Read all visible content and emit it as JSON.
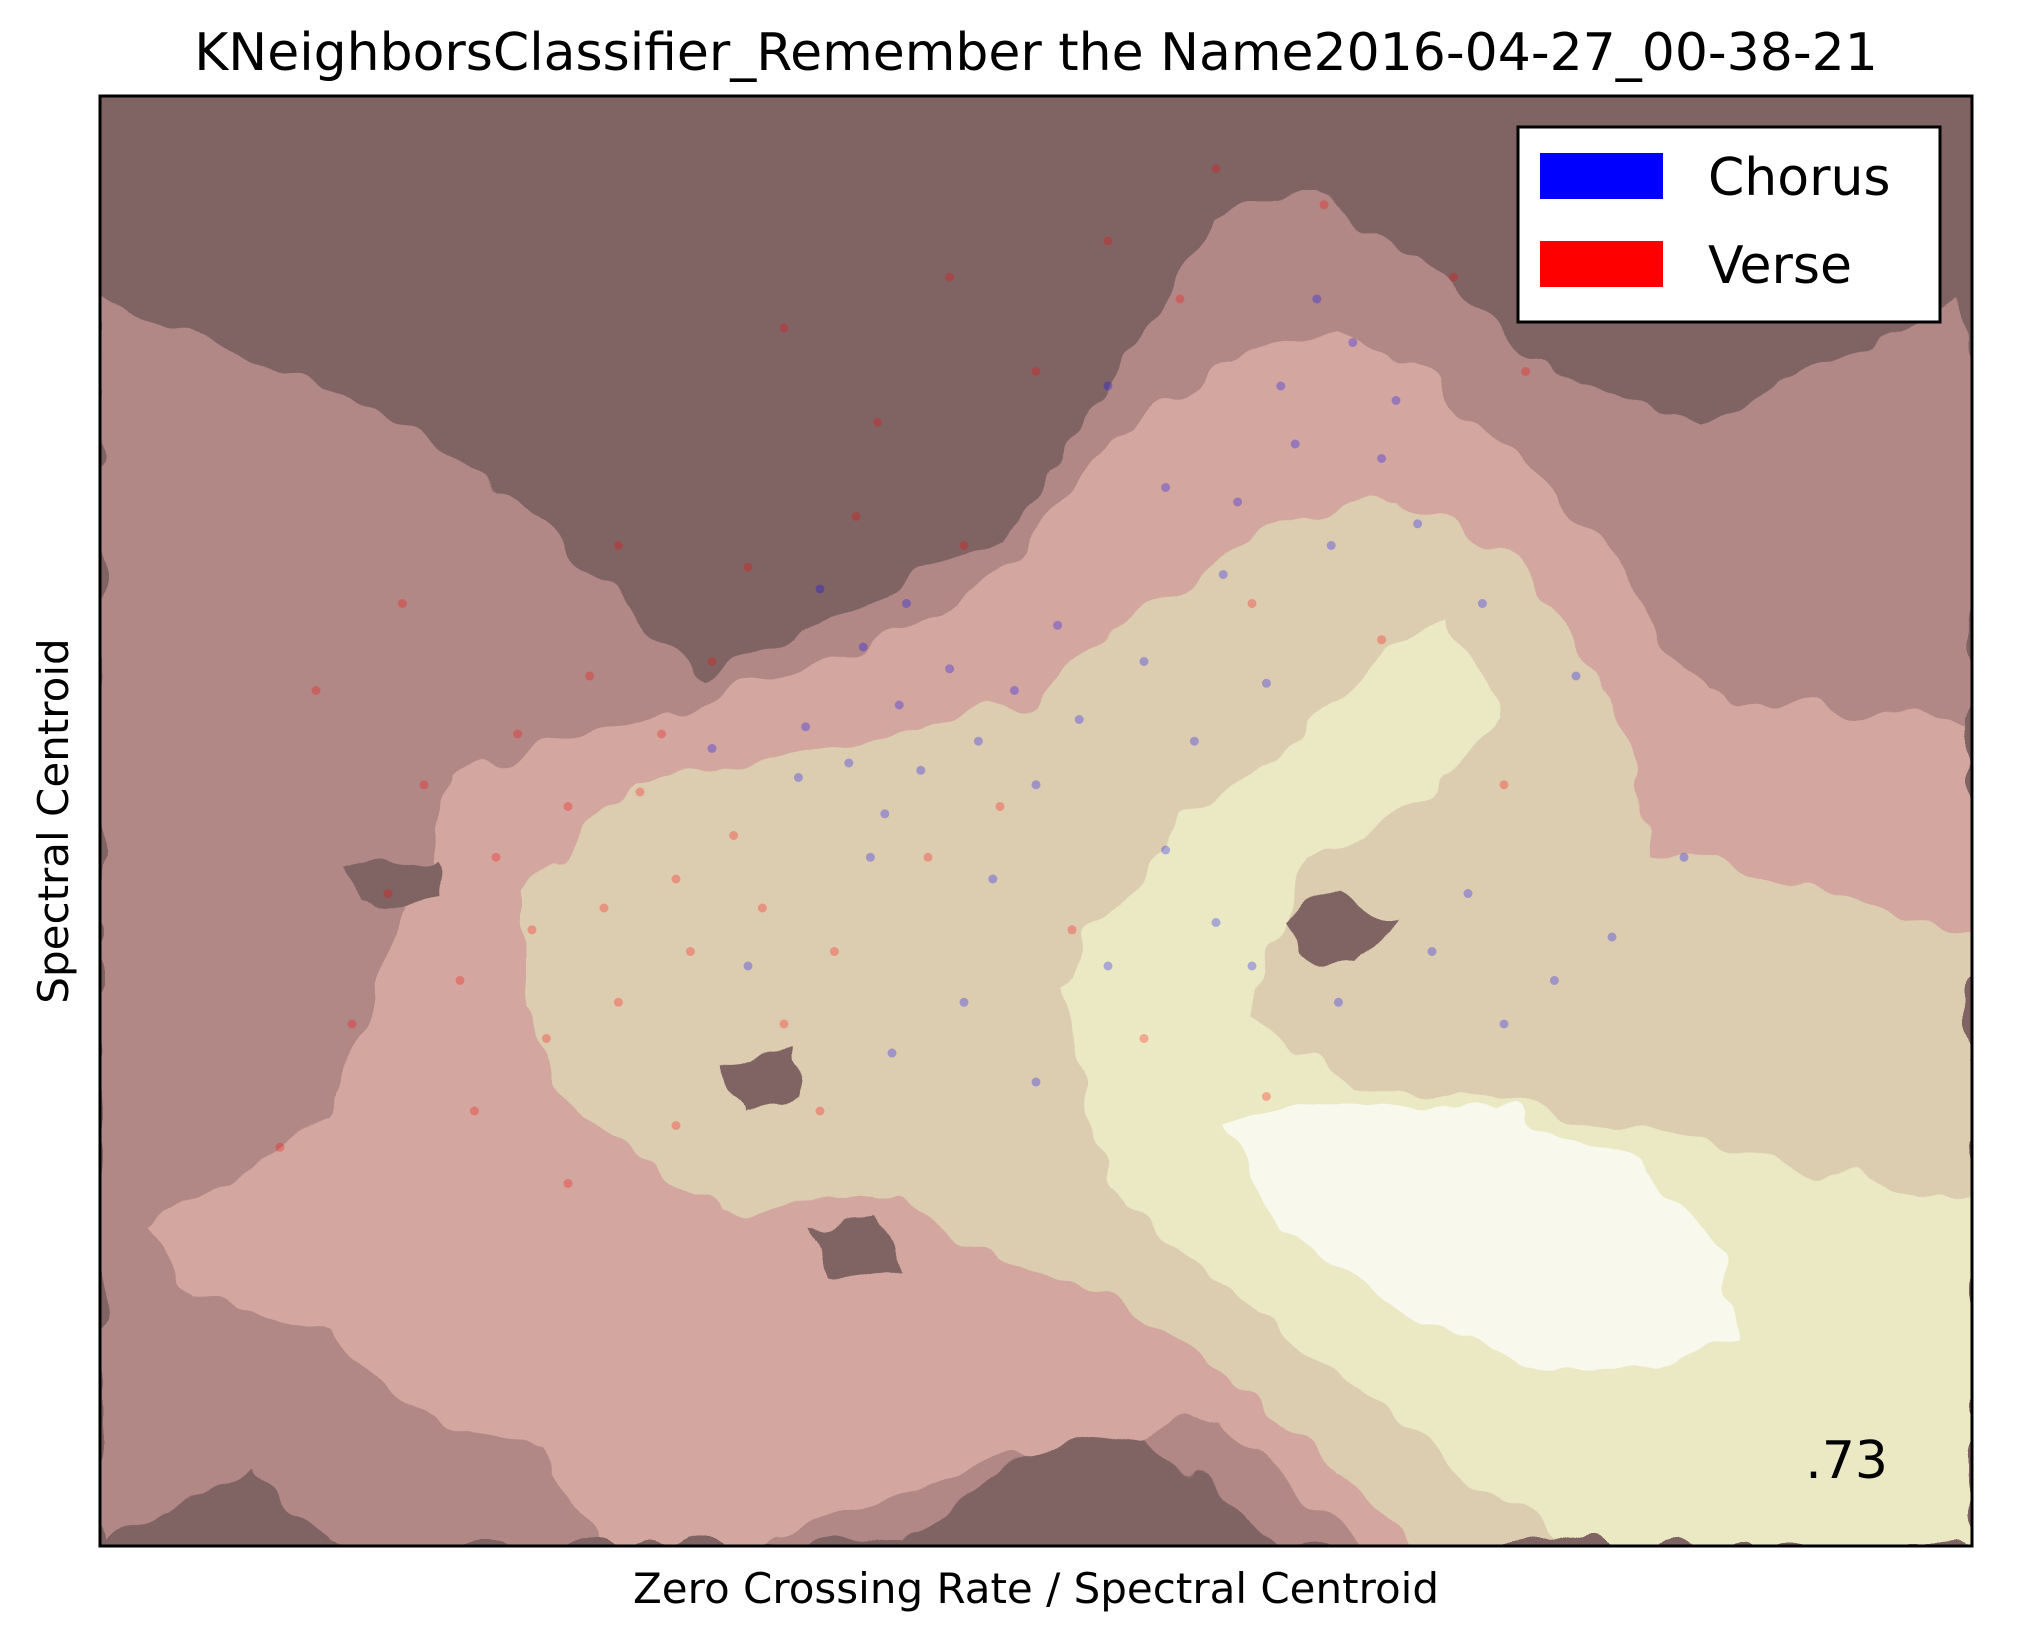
{
  "chart_data": {
    "type": "scatter",
    "title": "KNeighborsClassifier_Remember the Name2016-04-27_00-38-21",
    "xlabel": "Zero Crossing Rate / Spectral Centroid",
    "ylabel": "Spectral Centroid",
    "ticks_shown": false,
    "score_label": ".73",
    "legend": {
      "position": "upper-right",
      "entries": [
        {
          "label": "Chorus",
          "color": "#0000ff"
        },
        {
          "label": "Verse",
          "color": "#ff0000"
        }
      ]
    },
    "background": {
      "kind": "decision-surface-contour",
      "colormap": "pink",
      "levels": [
        "#806464",
        "#b28887",
        "#d3a79f",
        "#ddcdb0",
        "#eae9c4",
        "#f8f8ed"
      ]
    },
    "series": [
      {
        "name": "Chorus",
        "color": "#0000ff",
        "points": [
          [
            -0.03,
            0.06
          ],
          [
            -0.02,
            0.13
          ],
          [
            0.04,
            0.08
          ],
          [
            0.09,
            0.01
          ],
          [
            0.11,
            0.16
          ],
          [
            0.07,
            -0.05
          ],
          [
            0.14,
            0.07
          ],
          [
            0.18,
            0.21
          ],
          [
            0.22,
            0.11
          ],
          [
            0.06,
            0.24
          ],
          [
            0.27,
            0.18
          ],
          [
            0.3,
            0.05
          ],
          [
            0.24,
            -0.08
          ],
          [
            0.33,
            0.27
          ],
          [
            0.36,
            0.14
          ],
          [
            0.12,
            0.3
          ],
          [
            0.45,
            0.22
          ],
          [
            0.52,
            0.11
          ],
          [
            0.48,
            -0.04
          ],
          [
            0.56,
            0.34
          ],
          [
            0.62,
            0.19
          ],
          [
            0.58,
            0.44
          ],
          [
            0.66,
            0.52
          ],
          [
            0.71,
            0.38
          ],
          [
            0.64,
            0.6
          ],
          [
            0.74,
            0.66
          ],
          [
            0.78,
            0.5
          ],
          [
            0.69,
            0.72
          ],
          [
            0.83,
            0.41
          ],
          [
            0.8,
            0.58
          ],
          [
            0.55,
            -0.14
          ],
          [
            0.6,
            -0.2
          ],
          [
            0.72,
            -0.25
          ],
          [
            0.85,
            -0.18
          ],
          [
            0.9,
            -0.1
          ],
          [
            0.95,
            -0.28
          ],
          [
            1.02,
            -0.22
          ],
          [
            1.1,
            -0.16
          ],
          [
            0.4,
            -0.2
          ],
          [
            0.2,
            -0.25
          ],
          [
            -0.1,
            -0.2
          ],
          [
            -0.15,
            0.1
          ],
          [
            0.0,
            0.32
          ],
          [
            0.1,
            -0.32
          ],
          [
            0.3,
            -0.36
          ],
          [
            0.48,
            0.46
          ],
          [
            0.4,
            0.6
          ],
          [
            0.92,
            0.3
          ],
          [
            1.05,
            0.2
          ],
          [
            1.2,
            -0.05
          ]
        ]
      },
      {
        "name": "Verse",
        "color": "#ff0000",
        "points": [
          [
            -0.12,
            -0.02
          ],
          [
            -0.2,
            -0.08
          ],
          [
            -0.25,
            0.04
          ],
          [
            -0.3,
            -0.12
          ],
          [
            -0.18,
            -0.18
          ],
          [
            -0.35,
            0.02
          ],
          [
            -0.4,
            -0.15
          ],
          [
            -0.28,
            -0.25
          ],
          [
            -0.45,
            -0.05
          ],
          [
            -0.5,
            -0.22
          ],
          [
            -0.22,
            0.12
          ],
          [
            -0.08,
            -0.12
          ],
          [
            -0.05,
            -0.28
          ],
          [
            -0.38,
            -0.3
          ],
          [
            -0.55,
            0.05
          ],
          [
            -0.6,
            -0.1
          ],
          [
            -0.15,
            0.22
          ],
          [
            -0.32,
            0.2
          ],
          [
            0.02,
            -0.18
          ],
          [
            -0.42,
            0.12
          ],
          [
            -0.65,
            -0.28
          ],
          [
            -0.1,
            0.35
          ],
          [
            0.05,
            0.42
          ],
          [
            0.2,
            0.38
          ],
          [
            -0.28,
            0.38
          ],
          [
            0.15,
            -0.05
          ],
          [
            0.25,
            0.02
          ],
          [
            -0.48,
            -0.4
          ],
          [
            -0.2,
            -0.42
          ],
          [
            0.0,
            -0.4
          ],
          [
            0.35,
            -0.15
          ],
          [
            -0.7,
            0.18
          ],
          [
            0.08,
            0.55
          ],
          [
            0.3,
            0.62
          ],
          [
            0.5,
            0.72
          ],
          [
            0.4,
            0.8
          ],
          [
            0.55,
            0.9
          ],
          [
            0.7,
            0.85
          ],
          [
            0.88,
            0.75
          ],
          [
            0.98,
            0.62
          ],
          [
            0.6,
            0.3
          ],
          [
            0.45,
            -0.3
          ],
          [
            0.62,
            -0.38
          ],
          [
            0.78,
            0.25
          ],
          [
            -0.58,
            0.3
          ],
          [
            -0.75,
            -0.45
          ],
          [
            -0.35,
            -0.5
          ],
          [
            0.18,
            0.75
          ],
          [
            -0.05,
            0.68
          ],
          [
            0.95,
            0.05
          ]
        ]
      }
    ]
  }
}
